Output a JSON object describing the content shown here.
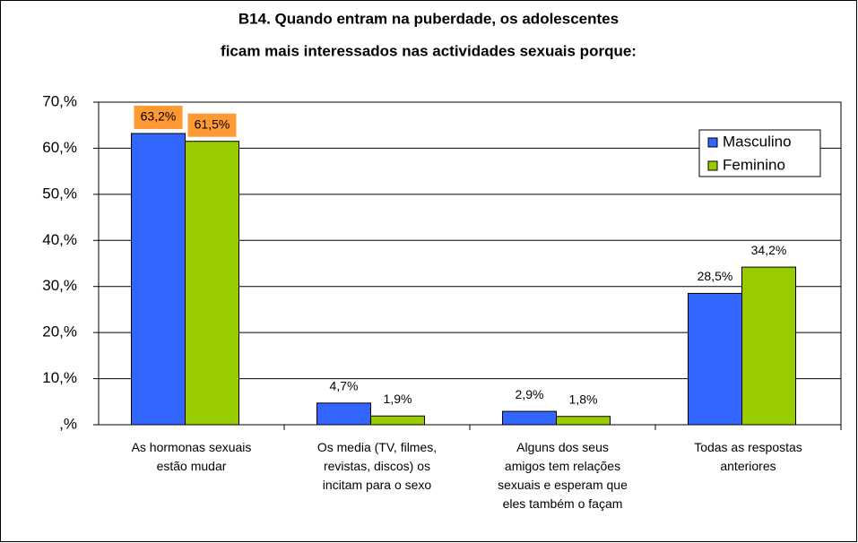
{
  "chart_data": {
    "type": "bar",
    "title": [
      "B14. Quando entram na puberdade, os adolescentes",
      "ficam mais interessados nas actividades sexuais porque:"
    ],
    "categories": [
      "As hormonas sexuais\nestão mudar",
      "Os media (TV, filmes,\nrevistas, discos) os\nincitam para o sexo",
      "Alguns dos seus\namigos tem relações\nsexuais e esperam que\neles também o façam",
      "Todas as respostas\nanteriores"
    ],
    "series": [
      {
        "name": "Masculino",
        "color": "#3366ff",
        "values": [
          63.2,
          4.7,
          2.9,
          28.5
        ],
        "value_labels": [
          "63,2%",
          "4,7%",
          "2,9%",
          "28,5%"
        ]
      },
      {
        "name": "Feminino",
        "color": "#99cc00",
        "values": [
          61.5,
          1.9,
          1.8,
          34.2
        ],
        "value_labels": [
          "61,5%",
          "1,9%",
          "1,8%",
          "34,2%"
        ]
      }
    ],
    "ylim": [
      0,
      70
    ],
    "yticks": [
      {
        "value": 0,
        "label": ",%"
      },
      {
        "value": 10,
        "label": "10,%"
      },
      {
        "value": 20,
        "label": "20,%"
      },
      {
        "value": 30,
        "label": "30,%"
      },
      {
        "value": 40,
        "label": "40,%"
      },
      {
        "value": 50,
        "label": "50,%"
      },
      {
        "value": 60,
        "label": "60,%"
      },
      {
        "value": 70,
        "label": "70,%"
      }
    ],
    "grid": true,
    "legend": "upper right"
  }
}
